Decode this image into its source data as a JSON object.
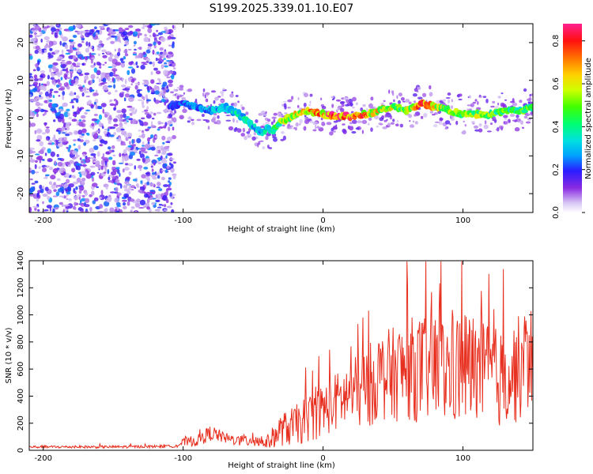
{
  "title": "S199.2025.339.01.10.E07",
  "chart_data": [
    {
      "type": "heatmap",
      "title": "S199.2025.339.01.10.E07",
      "xlabel": "Height of straight line (km)",
      "ylabel": "Frequency (Hz)",
      "xlim": [
        -210,
        150
      ],
      "ylim": [
        -25,
        25
      ],
      "xticks": [
        -200,
        -100,
        0,
        100
      ],
      "yticks": [
        -20,
        -10,
        0,
        10,
        20
      ],
      "colorbar": {
        "label": "Normalized spectral amplitude",
        "range": [
          0,
          0.88
        ],
        "ticks": [
          0.0,
          0.2,
          0.4,
          0.6,
          0.8
        ]
      },
      "noise_region_x": [
        -210,
        -110
      ],
      "signal_ridge": {
        "x": [
          -110,
          -100,
          -90,
          -80,
          -70,
          -60,
          -50,
          -45,
          -40,
          -35,
          -30,
          -20,
          -10,
          0,
          10,
          20,
          30,
          40,
          50,
          60,
          70,
          80,
          90,
          100,
          110,
          120,
          130,
          140,
          150
        ],
        "freq": [
          3,
          4,
          3,
          2,
          3,
          1,
          -2,
          -4,
          -3,
          -3,
          -1,
          1,
          2,
          1,
          0.5,
          0.5,
          1,
          2,
          3,
          2,
          4,
          3,
          2,
          1,
          1,
          1,
          2,
          2,
          3
        ],
        "amp": [
          0.2,
          0.25,
          0.25,
          0.3,
          0.3,
          0.35,
          0.35,
          0.3,
          0.35,
          0.4,
          0.5,
          0.6,
          0.65,
          0.7,
          0.8,
          0.75,
          0.7,
          0.6,
          0.55,
          0.5,
          0.85,
          0.6,
          0.5,
          0.5,
          0.55,
          0.5,
          0.45,
          0.45,
          0.5
        ]
      }
    },
    {
      "type": "line",
      "xlabel": "Height of straight line (km)",
      "ylabel": "SNR (10 * v/v)",
      "xlim": [
        -210,
        150
      ],
      "ylim": [
        0,
        1400
      ],
      "xticks": [
        -200,
        -100,
        0,
        100
      ],
      "yticks": [
        0,
        200,
        400,
        600,
        800,
        1000,
        1200,
        1400
      ],
      "color": "#e83020",
      "envelope": {
        "x": [
          -210,
          -150,
          -105,
          -100,
          -90,
          -80,
          -70,
          -60,
          -50,
          -40,
          -30,
          -20,
          -10,
          0,
          10,
          20,
          30,
          40,
          50,
          60,
          70,
          80,
          90,
          100,
          110,
          120,
          130,
          140,
          150
        ],
        "base": [
          25,
          25,
          30,
          60,
          70,
          130,
          90,
          70,
          80,
          60,
          150,
          180,
          240,
          300,
          360,
          420,
          450,
          550,
          560,
          600,
          600,
          600,
          580,
          620,
          600,
          550,
          520,
          600,
          700
        ],
        "spread": [
          10,
          10,
          10,
          30,
          40,
          60,
          40,
          40,
          60,
          50,
          120,
          150,
          180,
          200,
          220,
          250,
          300,
          330,
          350,
          380,
          400,
          420,
          400,
          450,
          400,
          380,
          360,
          400,
          400
        ]
      }
    }
  ]
}
